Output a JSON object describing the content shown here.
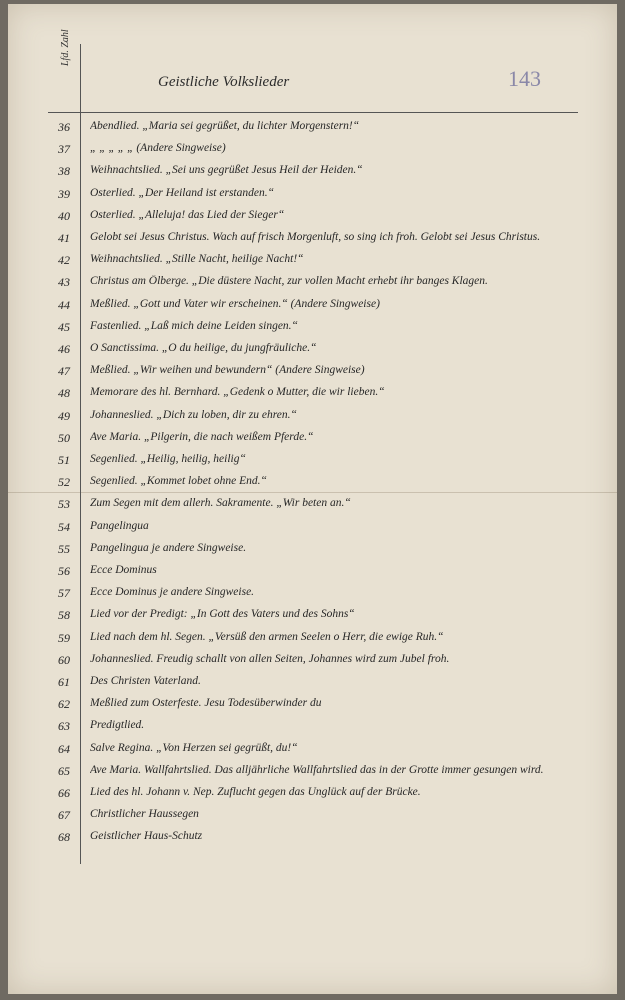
{
  "header": {
    "number_label": "Lfd. Zahl",
    "title": "Geistliche Volkslieder",
    "page_number": "143"
  },
  "rows": [
    [
      "36",
      "Abendlied. „Maria sei gegrüßet, du lichter Morgenstern!“"
    ],
    [
      "37",
      "„ „ „ „ „ (Andere Singweise)"
    ],
    [
      "38",
      "Weihnachtslied. „Sei uns gegrüßet Jesus Heil der Heiden.“"
    ],
    [
      "39",
      "Osterlied. „Der Heiland ist erstanden.“"
    ],
    [
      "40",
      "Osterlied. „Alleluja! das Lied der Sieger“"
    ],
    [
      "41",
      "Gelobt sei Jesus Christus. Wach auf frisch Morgenluft, so sing ich froh. Gelobt sei Jesus Christus."
    ],
    [
      "42",
      "Weihnachtslied. „Stille Nacht, heilige Nacht!“"
    ],
    [
      "43",
      "Christus am Ölberge. „Die düstere Nacht, zur vollen Macht erhebt ihr banges Klagen."
    ],
    [
      "44",
      "Meßlied. „Gott und Vater wir erscheinen.“ (Andere Singweise)"
    ],
    [
      "45",
      "Fastenlied. „Laß mich deine Leiden singen.“"
    ],
    [
      "46",
      "O Sanctissima. „O du heilige, du jungfräuliche.“"
    ],
    [
      "47",
      "Meßlied. „Wir weihen und bewundern“ (Andere Singweise)"
    ],
    [
      "48",
      "Memorare des hl. Bernhard. „Gedenk o Mutter, die wir lieben.“"
    ],
    [
      "49",
      "Johanneslied. „Dich zu loben, dir zu ehren.“"
    ],
    [
      "50",
      "Ave Maria. „Pilgerin, die nach weißem Pferde.“"
    ],
    [
      "51",
      "Segenlied. „Heilig, heilig, heilig“"
    ],
    [
      "52",
      "Segenlied. „Kommet lobet ohne End.“"
    ],
    [
      "53",
      "Zum Segen mit dem allerh. Sakramente. „Wir beten an.“"
    ],
    [
      "54",
      "Pangelingua"
    ],
    [
      "55",
      "Pangelingua je andere Singweise."
    ],
    [
      "56",
      "Ecce Dominus"
    ],
    [
      "57",
      "Ecce Dominus je andere Singweise."
    ],
    [
      "58",
      "Lied vor der Predigt: „In Gott des Vaters und des Sohns“"
    ],
    [
      "59",
      "Lied nach dem hl. Segen. „Versüß den armen Seelen o Herr, die ewige Ruh.“"
    ],
    [
      "60",
      "Johanneslied. Freudig schallt von allen Seiten, Johannes wird zum Jubel froh."
    ],
    [
      "61",
      "Des Christen Vaterland."
    ],
    [
      "62",
      "Meßlied zum Osterfeste. Jesu Todesüberwinder du"
    ],
    [
      "63",
      "Predigtlied."
    ],
    [
      "64",
      "Salve Regina. „Von Herzen sei gegrüßt, du!“"
    ],
    [
      "65",
      "Ave Maria. Wallfahrtslied. Das alljährliche Wallfahrtslied das in der Grotte immer gesungen wird."
    ],
    [
      "66",
      "Lied des hl. Johann v. Nep. Zuflucht gegen das Unglück auf der Brücke."
    ],
    [
      "67",
      "Christlicher Haussegen"
    ],
    [
      "68",
      "Geistlicher Haus-Schutz"
    ]
  ]
}
